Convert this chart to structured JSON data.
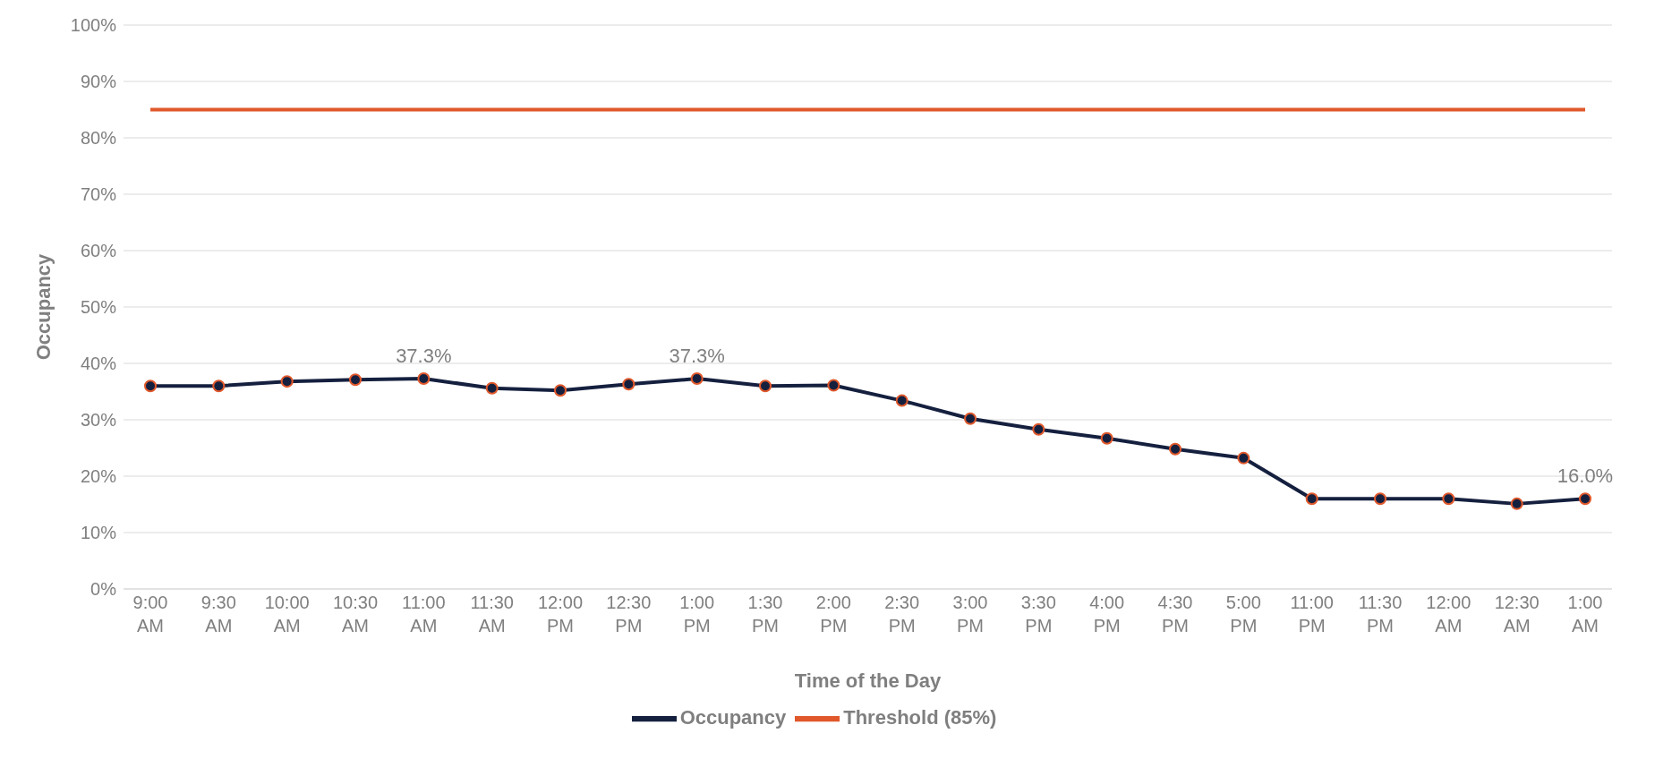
{
  "chart_data": {
    "type": "line",
    "xlabel": "Time of the Day",
    "ylabel": "Occupancy",
    "categories": [
      "9:00 AM",
      "9:30 AM",
      "10:00 AM",
      "10:30 AM",
      "11:00 AM",
      "11:30 AM",
      "12:00 PM",
      "12:30 PM",
      "1:00 PM",
      "1:30 PM",
      "2:00 PM",
      "2:30 PM",
      "3:00 PM",
      "3:30 PM",
      "4:00 PM",
      "4:30 PM",
      "5:00 PM",
      "11:00 PM",
      "11:30 PM",
      "12:00 AM",
      "12:30 AM",
      "1:00 AM"
    ],
    "series": [
      {
        "name": "Occupancy",
        "color": "#15203f",
        "marker": "circle",
        "values": [
          36.0,
          36.0,
          36.8,
          37.1,
          37.3,
          35.6,
          35.2,
          36.3,
          37.3,
          36.0,
          36.1,
          33.4,
          30.2,
          28.3,
          26.7,
          24.8,
          23.2,
          16.0,
          16.0,
          16.0,
          15.1,
          16.0
        ],
        "value_labels": [
          null,
          null,
          null,
          null,
          "37.3%",
          null,
          null,
          null,
          "37.3%",
          null,
          null,
          null,
          null,
          null,
          null,
          null,
          null,
          null,
          null,
          null,
          null,
          "16.0%"
        ]
      },
      {
        "name": "Threshold (85%)",
        "color": "#e0582b",
        "marker": "none",
        "values": [
          85,
          85,
          85,
          85,
          85,
          85,
          85,
          85,
          85,
          85,
          85,
          85,
          85,
          85,
          85,
          85,
          85,
          85,
          85,
          85,
          85,
          85
        ]
      }
    ],
    "ylim": [
      0,
      100
    ],
    "yticks": [
      {
        "value": 0,
        "label": "0%"
      },
      {
        "value": 10,
        "label": "10%"
      },
      {
        "value": 20,
        "label": "20%"
      },
      {
        "value": 30,
        "label": "30%"
      },
      {
        "value": 40,
        "label": "40%"
      },
      {
        "value": 50,
        "label": "50%"
      },
      {
        "value": 60,
        "label": "60%"
      },
      {
        "value": 70,
        "label": "70%"
      },
      {
        "value": 80,
        "label": "80%"
      },
      {
        "value": 90,
        "label": "90%"
      },
      {
        "value": 100,
        "label": "100%"
      }
    ],
    "grid": "y",
    "legend": "bottom"
  }
}
